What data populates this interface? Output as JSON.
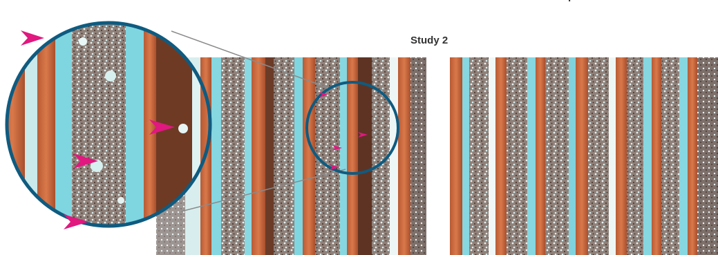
{
  "figure": {
    "caption_partial": "p",
    "panel_title": "Study 2"
  },
  "colors": {
    "ring": "#0f5b80",
    "arrowhead": "#e0187f",
    "connector": "#8a8a8a",
    "copper": "#c8663a",
    "dark_copper": "#6e3a24",
    "cyan": "#7fd6e0",
    "pale": "#dff3f3",
    "grey_texture": "#8c7f78",
    "background": "#ffffff"
  },
  "elements": {
    "left_micrograph": "micrograph",
    "right_micrograph": "micrograph",
    "magnifier_circle": "magnified-inset",
    "focus_circle": "zoom-target-circle",
    "arrowheads": [
      "arrowhead-icon",
      "arrowhead-icon",
      "arrowhead-icon",
      "arrowhead-icon",
      "arrowhead-icon",
      "arrowhead-icon",
      "arrowhead-icon",
      "arrowhead-icon"
    ]
  }
}
